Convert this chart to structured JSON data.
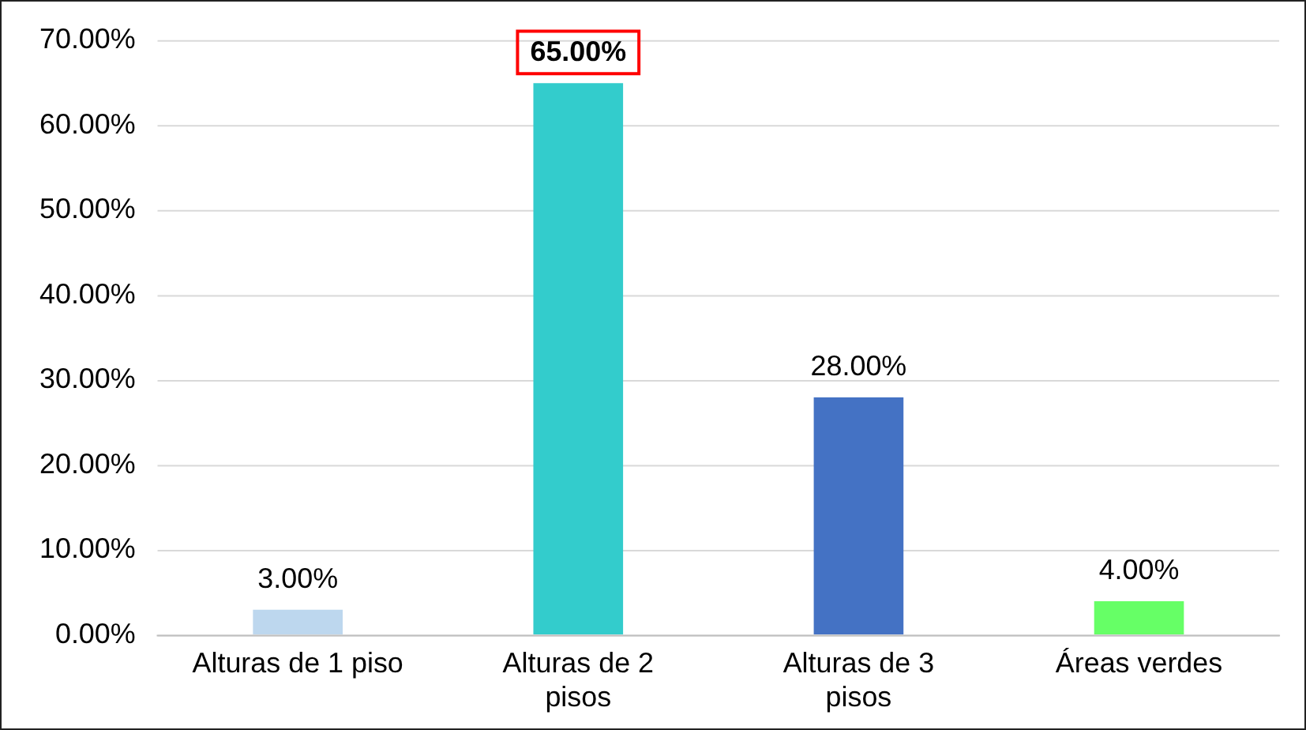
{
  "chart_data": {
    "type": "bar",
    "categories": [
      "Alturas de 1 piso",
      "Alturas de 2 pisos",
      "Alturas de 3 pisos",
      "Áreas verdes"
    ],
    "values": [
      3,
      65,
      28,
      4
    ],
    "colors": [
      "#bdd7ee",
      "#33cccc",
      "#4472c4",
      "#66ff66"
    ],
    "value_labels": [
      "3.00%",
      "65.00%",
      "28.00%",
      "4.00%"
    ],
    "ylim": [
      0,
      70
    ],
    "yticks": [
      {
        "value": 0,
        "label": "0.00%"
      },
      {
        "value": 10,
        "label": "10.00%"
      },
      {
        "value": 20,
        "label": "20.00%"
      },
      {
        "value": 30,
        "label": "30.00%"
      },
      {
        "value": 40,
        "label": "40.00%"
      },
      {
        "value": 50,
        "label": "50.00%"
      },
      {
        "value": 60,
        "label": "60.00%"
      },
      {
        "value": 70,
        "label": "70.00%"
      }
    ],
    "grid": "y"
  }
}
